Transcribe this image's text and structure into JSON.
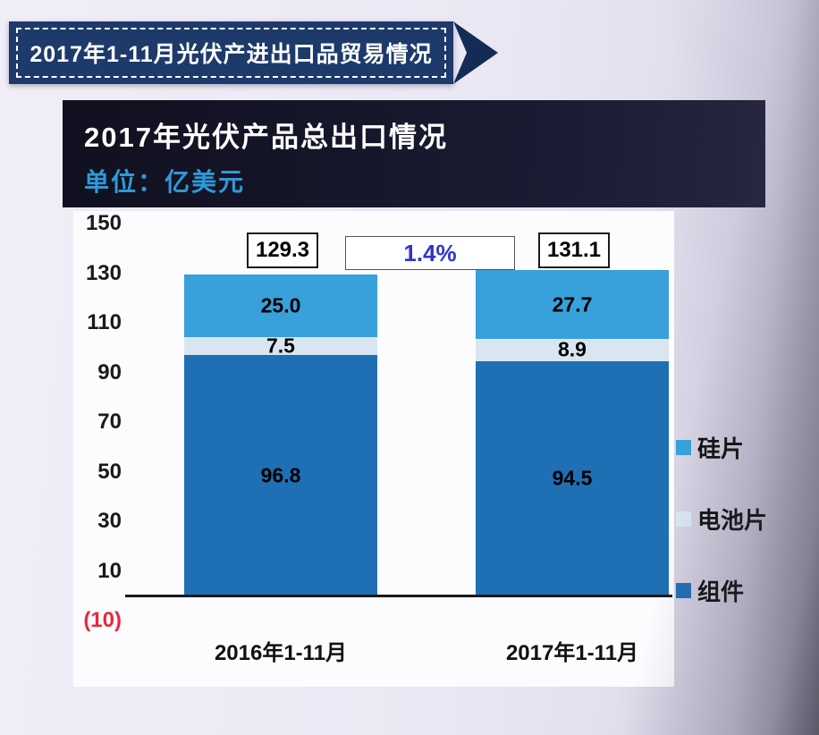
{
  "banner": {
    "title": "2017年1-11月光伏产进出口品贸易情况"
  },
  "header": {
    "title": "2017年光伏产品总出口情况",
    "unit": "单位：亿美元"
  },
  "colors": {
    "ribbon_navy": "#1d3a6b",
    "header_box": "#15152a",
    "unit_text_blue": "#2e9ad6",
    "growth_text_blue": "#3232cc",
    "negative_tick_red": "#e8293c",
    "module_blue": "#1f6fb4",
    "cell_pale_blue": "#d9e6f2",
    "wafer_light_blue": "#38a0da"
  },
  "chart_data": {
    "type": "bar",
    "subtype": "stacked",
    "categories": [
      "2016年1-11月",
      "2017年1-11月"
    ],
    "series": [
      {
        "name": "组件",
        "color": "#1f6fb4",
        "values": [
          96.8,
          94.5
        ]
      },
      {
        "name": "电池片",
        "color": "#d9e6f2",
        "values": [
          7.5,
          8.9
        ]
      },
      {
        "name": "硅片",
        "color": "#38a0da",
        "values": [
          25.0,
          27.7
        ]
      }
    ],
    "totals": [
      "129.3",
      "131.1"
    ],
    "growth_label": "1.4%",
    "y_ticks": [
      "150",
      "130",
      "110",
      "90",
      "70",
      "50",
      "30",
      "10",
      "(10)"
    ],
    "y_max": 150,
    "y_min": -10,
    "grid": false,
    "legend": [
      "硅片",
      "电池片",
      "组件"
    ],
    "legend_position": "right",
    "title": "2017年光伏产品总出口情况",
    "ylabel": "单位：亿美元"
  }
}
